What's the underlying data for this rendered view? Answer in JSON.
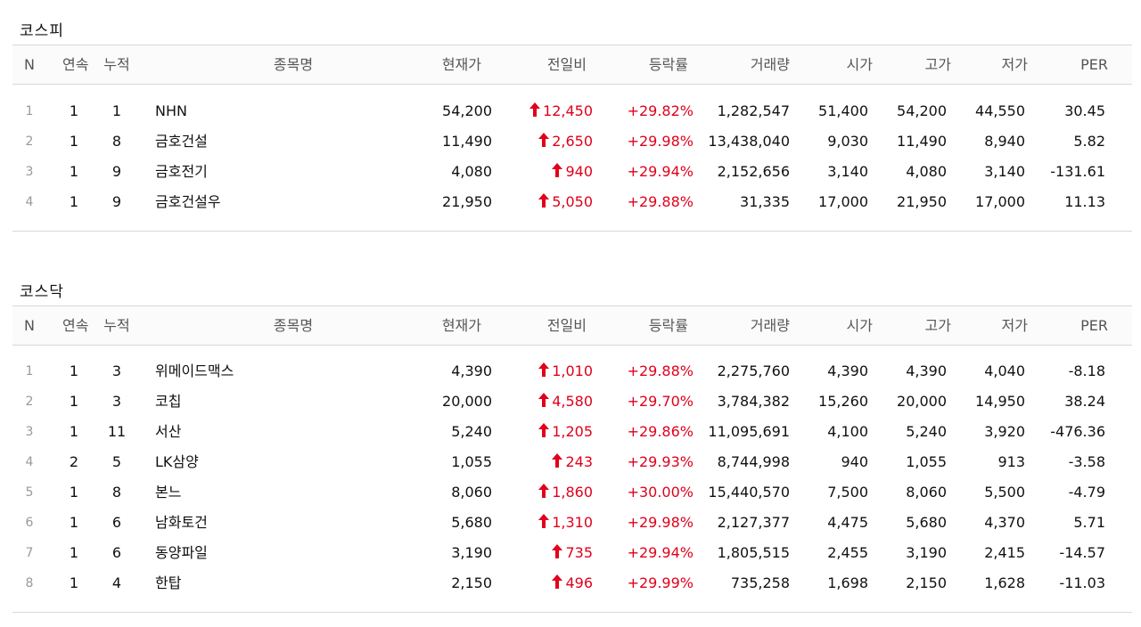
{
  "headers": {
    "n": "N",
    "consecutive": "연속",
    "cumulative": "누적",
    "name": "종목명",
    "price": "현재가",
    "diff": "전일비",
    "rate": "등락률",
    "volume": "거래량",
    "open": "시가",
    "high": "고가",
    "low": "저가",
    "per": "PER"
  },
  "colors": {
    "up": "#e0001b"
  },
  "icons": {
    "up": "up-arrow-icon"
  },
  "kospi": {
    "title": "코스피",
    "rows": [
      {
        "n": "1",
        "cont": "1",
        "cum": "1",
        "name": "NHN",
        "price": "54,200",
        "diff": "12,450",
        "rate": "+29.82%",
        "vol": "1,282,547",
        "open": "51,400",
        "high": "54,200",
        "low": "44,550",
        "per": "30.45"
      },
      {
        "n": "2",
        "cont": "1",
        "cum": "8",
        "name": "금호건설",
        "price": "11,490",
        "diff": "2,650",
        "rate": "+29.98%",
        "vol": "13,438,040",
        "open": "9,030",
        "high": "11,490",
        "low": "8,940",
        "per": "5.82"
      },
      {
        "n": "3",
        "cont": "1",
        "cum": "9",
        "name": "금호전기",
        "price": "4,080",
        "diff": "940",
        "rate": "+29.94%",
        "vol": "2,152,656",
        "open": "3,140",
        "high": "4,080",
        "low": "3,140",
        "per": "-131.61"
      },
      {
        "n": "4",
        "cont": "1",
        "cum": "9",
        "name": "금호건설우",
        "price": "21,950",
        "diff": "5,050",
        "rate": "+29.88%",
        "vol": "31,335",
        "open": "17,000",
        "high": "21,950",
        "low": "17,000",
        "per": "11.13"
      }
    ]
  },
  "kosdaq": {
    "title": "코스닥",
    "rows": [
      {
        "n": "1",
        "cont": "1",
        "cum": "3",
        "name": "위메이드맥스",
        "price": "4,390",
        "diff": "1,010",
        "rate": "+29.88%",
        "vol": "2,275,760",
        "open": "4,390",
        "high": "4,390",
        "low": "4,040",
        "per": "-8.18"
      },
      {
        "n": "2",
        "cont": "1",
        "cum": "3",
        "name": "코칩",
        "price": "20,000",
        "diff": "4,580",
        "rate": "+29.70%",
        "vol": "3,784,382",
        "open": "15,260",
        "high": "20,000",
        "low": "14,950",
        "per": "38.24"
      },
      {
        "n": "3",
        "cont": "1",
        "cum": "11",
        "name": "서산",
        "price": "5,240",
        "diff": "1,205",
        "rate": "+29.86%",
        "vol": "11,095,691",
        "open": "4,100",
        "high": "5,240",
        "low": "3,920",
        "per": "-476.36"
      },
      {
        "n": "4",
        "cont": "2",
        "cum": "5",
        "name": "LK삼양",
        "price": "1,055",
        "diff": "243",
        "rate": "+29.93%",
        "vol": "8,744,998",
        "open": "940",
        "high": "1,055",
        "low": "913",
        "per": "-3.58"
      },
      {
        "n": "5",
        "cont": "1",
        "cum": "8",
        "name": "본느",
        "price": "8,060",
        "diff": "1,860",
        "rate": "+30.00%",
        "vol": "15,440,570",
        "open": "7,500",
        "high": "8,060",
        "low": "5,500",
        "per": "-4.79"
      },
      {
        "n": "6",
        "cont": "1",
        "cum": "6",
        "name": "남화토건",
        "price": "5,680",
        "diff": "1,310",
        "rate": "+29.98%",
        "vol": "2,127,377",
        "open": "4,475",
        "high": "5,680",
        "low": "4,370",
        "per": "5.71"
      },
      {
        "n": "7",
        "cont": "1",
        "cum": "6",
        "name": "동양파일",
        "price": "3,190",
        "diff": "735",
        "rate": "+29.94%",
        "vol": "1,805,515",
        "open": "2,455",
        "high": "3,190",
        "low": "2,415",
        "per": "-14.57"
      },
      {
        "n": "8",
        "cont": "1",
        "cum": "4",
        "name": "한탑",
        "price": "2,150",
        "diff": "496",
        "rate": "+29.99%",
        "vol": "735,258",
        "open": "1,698",
        "high": "2,150",
        "low": "1,628",
        "per": "-11.03"
      }
    ]
  }
}
